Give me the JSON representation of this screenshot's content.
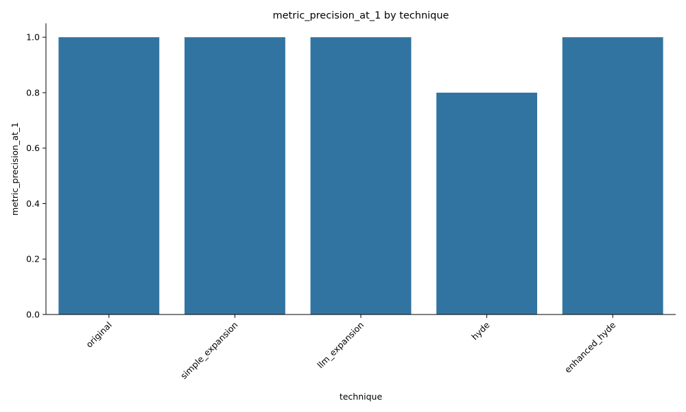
{
  "chart_data": {
    "type": "bar",
    "title": "metric_precision_at_1 by technique",
    "xlabel": "technique",
    "ylabel": "metric_precision_at_1",
    "categories": [
      "original",
      "simple_expansion",
      "llm_expansion",
      "hyde",
      "enhanced_hyde"
    ],
    "values": [
      1.0,
      1.0,
      1.0,
      0.8,
      1.0
    ],
    "ylim": [
      0,
      1.05
    ],
    "yticks": [
      0.0,
      0.2,
      0.4,
      0.6,
      0.8,
      1.0
    ],
    "ytick_labels": [
      "0.0",
      "0.2",
      "0.4",
      "0.6",
      "0.8",
      "1.0"
    ],
    "grid": false,
    "legend": "none",
    "bar_color": "#3274a1",
    "xtick_rotation_deg": 45
  }
}
